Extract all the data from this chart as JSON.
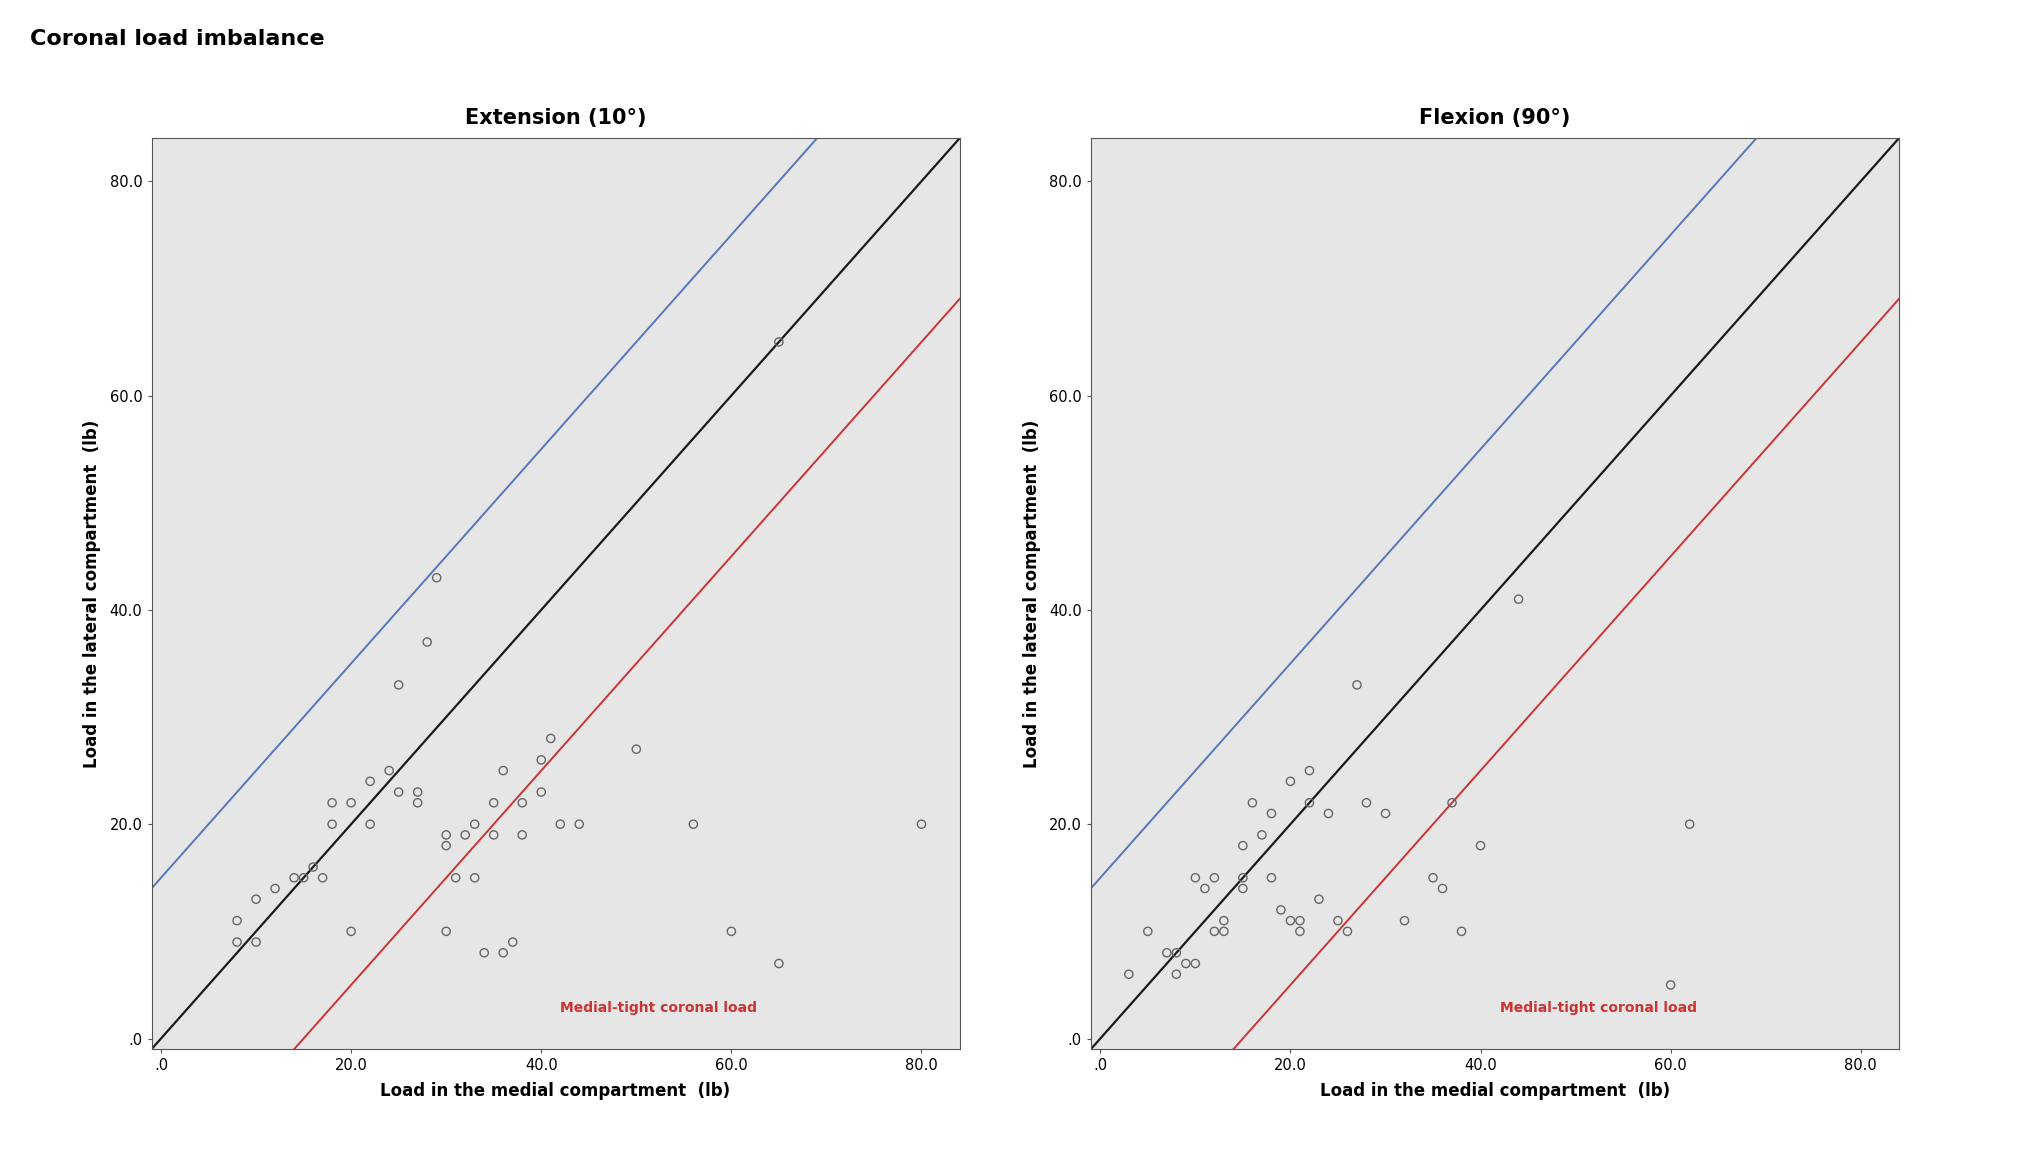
{
  "title": "Coronal load imbalance",
  "title_fontsize": 16,
  "title_fontweight": "bold",
  "subplot_titles": [
    "Extension (10°)",
    "Flexion (90°)"
  ],
  "subplot_title_fontsize": 15,
  "subplot_title_fontweight": "bold",
  "xlabel": "Load in the medial compartment  (lb)",
  "ylabel": "Load in the lateral compartment  (lb)",
  "axis_label_fontsize": 12,
  "xlim": [
    -1,
    84
  ],
  "ylim": [
    -1,
    84
  ],
  "xticks": [
    0,
    20,
    40,
    60,
    80
  ],
  "yticks": [
    0,
    20,
    40,
    60,
    80
  ],
  "tick_labels": [
    ".0",
    "20.0",
    "40.0",
    "60.0",
    "80.0"
  ],
  "background_color": "#e6e6e6",
  "figure_background": "#ffffff",
  "black_line": {
    "slope": 1.0,
    "intercept": 0.0,
    "color": "#1a1a1a",
    "lw": 1.6
  },
  "blue_line": {
    "slope": 1.0,
    "intercept": 15.0,
    "color": "#5577bb",
    "lw": 1.4
  },
  "red_line": {
    "slope": 1.0,
    "intercept": -15.0,
    "color": "#cc3333",
    "lw": 1.4
  },
  "red_label": "Medial-tight coronal load",
  "red_label_fontsize": 10,
  "scatter_edgecolor": "#666666",
  "scatter_facecolor": "none",
  "scatter_size": 35,
  "scatter_lw": 1.0,
  "ext_x": [
    8,
    8,
    10,
    10,
    12,
    14,
    15,
    16,
    17,
    18,
    18,
    20,
    20,
    22,
    22,
    24,
    25,
    25,
    27,
    27,
    28,
    29,
    30,
    30,
    30,
    31,
    32,
    33,
    33,
    34,
    35,
    35,
    36,
    36,
    37,
    38,
    38,
    40,
    40,
    41,
    42,
    44,
    50,
    56,
    60,
    65,
    65,
    80
  ],
  "ext_y": [
    11,
    9,
    13,
    9,
    14,
    15,
    15,
    16,
    15,
    20,
    22,
    10,
    22,
    20,
    24,
    25,
    23,
    33,
    22,
    23,
    37,
    43,
    10,
    19,
    18,
    15,
    19,
    15,
    20,
    8,
    19,
    22,
    8,
    25,
    9,
    19,
    22,
    26,
    23,
    28,
    20,
    20,
    27,
    20,
    10,
    65,
    7,
    20
  ],
  "flex_x": [
    3,
    5,
    7,
    8,
    8,
    9,
    10,
    10,
    11,
    12,
    12,
    13,
    13,
    15,
    15,
    15,
    16,
    17,
    18,
    18,
    19,
    20,
    20,
    21,
    21,
    22,
    22,
    23,
    24,
    25,
    26,
    27,
    28,
    30,
    32,
    35,
    36,
    37,
    38,
    40,
    44,
    60,
    62
  ],
  "flex_y": [
    6,
    10,
    8,
    8,
    6,
    7,
    7,
    15,
    14,
    10,
    15,
    10,
    11,
    14,
    15,
    18,
    22,
    19,
    21,
    15,
    12,
    11,
    24,
    11,
    10,
    22,
    25,
    13,
    21,
    11,
    10,
    33,
    22,
    21,
    11,
    15,
    14,
    22,
    10,
    18,
    41,
    5,
    20
  ]
}
